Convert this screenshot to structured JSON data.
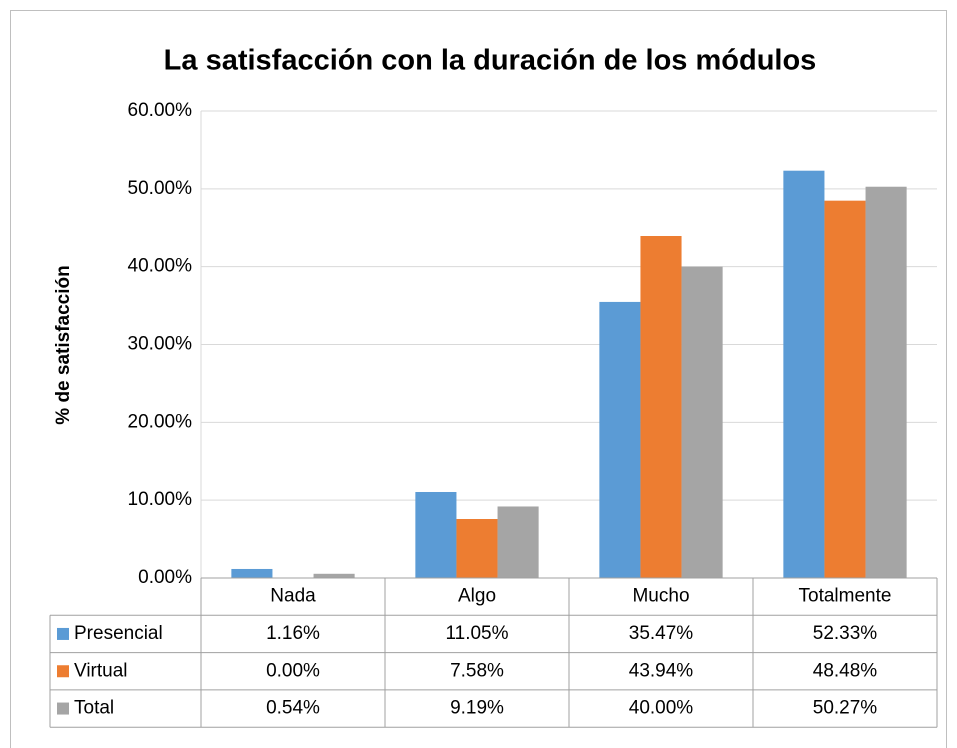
{
  "chart_data": {
    "type": "bar",
    "title": "La satisfacción con la duración de los módulos",
    "y_label": "% de satisfacción",
    "categories": [
      "Nada",
      "Algo",
      "Mucho",
      "Totalmente"
    ],
    "series": [
      {
        "name": "Presencial",
        "color": "#5b9bd5",
        "values": [
          1.16,
          11.05,
          35.47,
          52.33
        ],
        "value_labels": [
          "1.16%",
          "11.05%",
          "35.47%",
          "52.33%"
        ]
      },
      {
        "name": "Virtual",
        "color": "#ed7d31",
        "values": [
          0.0,
          7.58,
          43.94,
          48.48
        ],
        "value_labels": [
          "0.00%",
          "7.58%",
          "43.94%",
          "48.48%"
        ]
      },
      {
        "name": "Total",
        "color": "#a5a5a5",
        "values": [
          0.54,
          9.19,
          40.0,
          50.27
        ],
        "value_labels": [
          "0.54%",
          "9.19%",
          "40.00%",
          "50.27%"
        ]
      }
    ],
    "ylim": [
      0,
      60
    ],
    "yticks": [
      {
        "value": 0,
        "label": "0.00%"
      },
      {
        "value": 10,
        "label": "10.00%"
      },
      {
        "value": 20,
        "label": "20.00%"
      },
      {
        "value": 30,
        "label": "30.00%"
      },
      {
        "value": 40,
        "label": "40.00%"
      },
      {
        "value": 50,
        "label": "50.00%"
      },
      {
        "value": 60,
        "label": "60.00%"
      }
    ],
    "grid": true
  }
}
